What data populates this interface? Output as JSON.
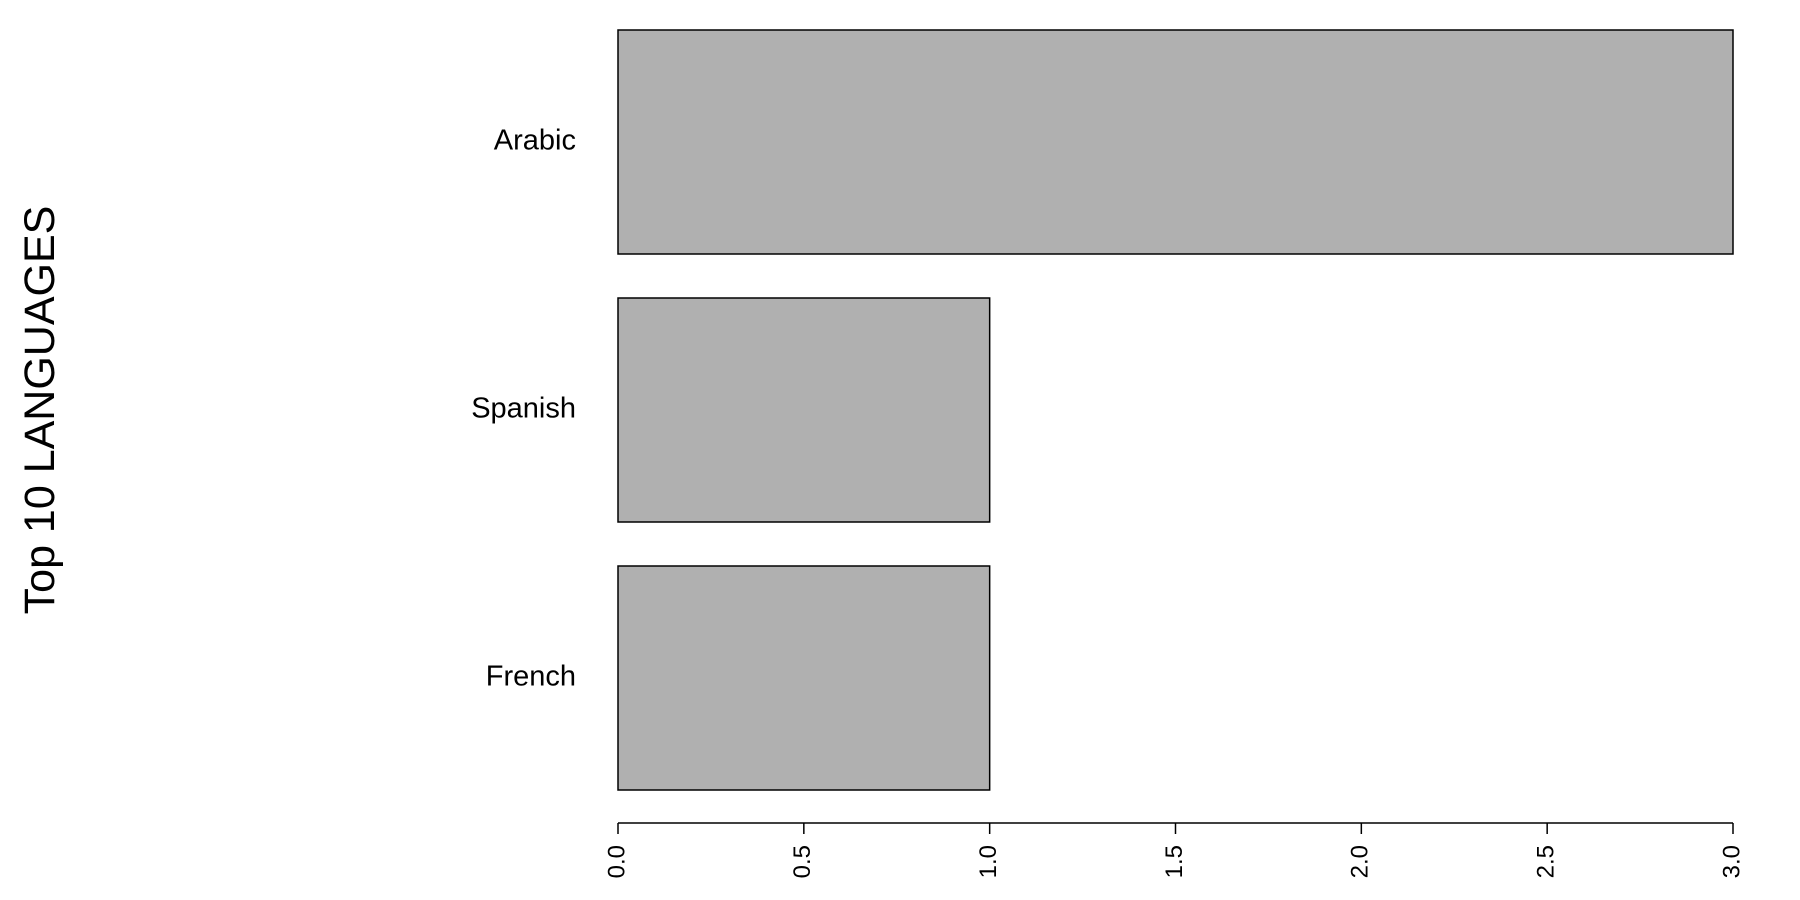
{
  "chart_data": {
    "type": "bar",
    "orientation": "horizontal",
    "title": "",
    "xlabel": "",
    "ylabel": "Top 10 LANGUAGES",
    "categories": [
      "Arabic",
      "Spanish",
      "French"
    ],
    "values": [
      3,
      1,
      1
    ],
    "xlim": [
      0,
      3
    ],
    "xticks": [
      "0.0",
      "0.5",
      "1.0",
      "1.5",
      "2.0",
      "2.5",
      "3.0"
    ],
    "grid": false,
    "legend": "none",
    "bar_color": "#b0b0b0",
    "bar_edge_color": "#000000"
  }
}
